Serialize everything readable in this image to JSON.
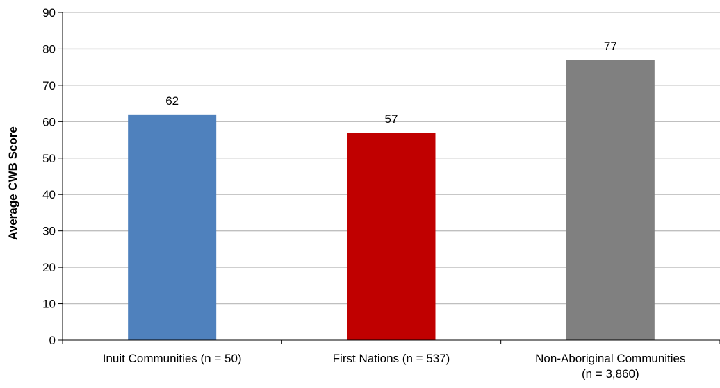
{
  "chart_data": {
    "type": "bar",
    "title": "",
    "xlabel": "",
    "ylabel": "Average CWB Score",
    "ylim": [
      0,
      90
    ],
    "ytick_step": 10,
    "grid": true,
    "categories": [
      [
        "Inuit Communities (n = 50)"
      ],
      [
        "First Nations (n = 537)"
      ],
      [
        "Non-Aboriginal Communities",
        "(n = 3,860)"
      ]
    ],
    "values": [
      62,
      57,
      77
    ],
    "data_labels": [
      "62",
      "57",
      "77"
    ],
    "bar_colors": [
      "#4F81BD",
      "#C00000",
      "#808080"
    ],
    "gridline_color": "#BFBFBF",
    "axis_color": "#000000"
  }
}
